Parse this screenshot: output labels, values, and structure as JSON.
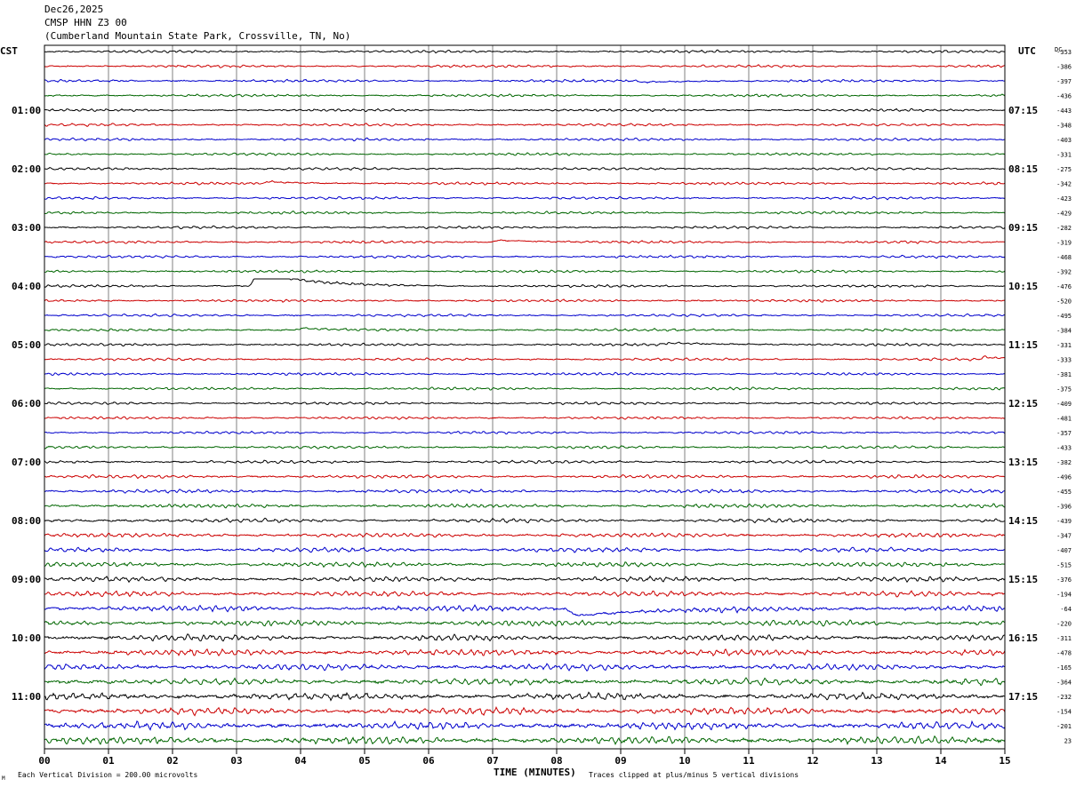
{
  "header": {
    "date": "Dec26,2025",
    "station": "CMSP HHN Z3 00",
    "location": "(Cumberland Mountain State Park, Crossville, TN, No)"
  },
  "left_label": "CST",
  "right_label": "UTC",
  "dc_label": "DC",
  "footer": {
    "scale_note": "Each Vertical Division =  200.00 microvolts",
    "xlabel": "TIME (MINUTES)",
    "clip_note": "Traces clipped at plus/minus 5 vertical divisions",
    "corner_mark": "M"
  },
  "colors": {
    "cycle": [
      "#000000",
      "#cc0000",
      "#0000cc",
      "#006600"
    ],
    "grid": "#808080",
    "frame": "#000000"
  },
  "chart_data": {
    "type": "line",
    "subtype": "helicorder",
    "xlabel": "TIME (MINUTES)",
    "xlim": [
      0,
      15
    ],
    "x_ticks": [
      "00",
      "01",
      "02",
      "03",
      "04",
      "05",
      "06",
      "07",
      "08",
      "09",
      "10",
      "11",
      "12",
      "13",
      "14",
      "15"
    ],
    "trace_count": 48,
    "trace_minutes": 15,
    "left_hour_labels": [
      "01:00",
      "02:00",
      "03:00",
      "04:00",
      "05:00",
      "06:00",
      "07:00",
      "08:00",
      "09:00",
      "10:00",
      "11:00"
    ],
    "right_hour_labels": [
      "07:15",
      "08:15",
      "09:15",
      "10:15",
      "11:15",
      "12:15",
      "13:15",
      "14:15",
      "15:15",
      "16:15",
      "17:15"
    ],
    "dc_offsets": [
      -353,
      -386,
      -397,
      -436,
      -443,
      -348,
      -403,
      -331,
      -275,
      -342,
      -423,
      -429,
      -282,
      -319,
      -468,
      -392,
      -476,
      -520,
      -495,
      -384,
      -331,
      -333,
      -381,
      -375,
      -409,
      -481,
      -357,
      -433,
      -382,
      -496,
      -455,
      -396,
      -439,
      -347,
      -407,
      -515,
      -376,
      -194,
      -64,
      -220,
      -311,
      -478,
      -165,
      -364,
      -232,
      -154,
      -201,
      23
    ],
    "events": [
      {
        "trace": 16,
        "minute": 3.2,
        "amp": -16,
        "dur": 1.0
      },
      {
        "trace": 38,
        "minute": 8.1,
        "amp": 8,
        "dur": 1.6
      },
      {
        "trace": 2,
        "minute": 9.2,
        "amp": 1.5,
        "dur": 1.0
      },
      {
        "trace": 9,
        "minute": 3.4,
        "amp": -2,
        "dur": 0.6
      },
      {
        "trace": 13,
        "minute": 7.0,
        "amp": -2,
        "dur": 0.8
      },
      {
        "trace": 21,
        "minute": 14.6,
        "amp": -2.5,
        "dur": 0.6
      },
      {
        "trace": 19,
        "minute": 3.9,
        "amp": -2,
        "dur": 0.7
      },
      {
        "trace": 20,
        "minute": 9.6,
        "amp": -2,
        "dur": 1.0
      }
    ]
  }
}
